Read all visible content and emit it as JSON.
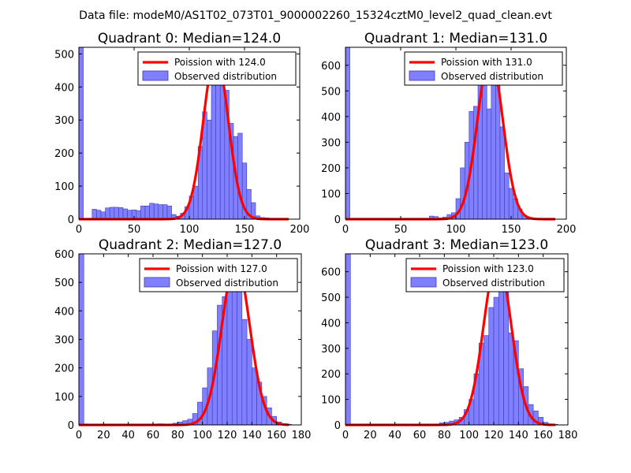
{
  "figure": {
    "suptitle": "Data file: modeM0/AS1T02_073T01_9000002260_15324cztM0_level2_quad_clean.evt"
  },
  "colors": {
    "bar_fill": "#7f7fff",
    "bar_edge": "#3c3cb4",
    "curve": "#ff0000"
  },
  "chart_data": [
    {
      "type": "bar",
      "title": "Quadrant 0: Median=124.0",
      "median": 124.0,
      "xlim": [
        0,
        200
      ],
      "ylim": [
        0,
        520
      ],
      "xticks": [
        0,
        50,
        100,
        150,
        200
      ],
      "yticks": [
        0,
        100,
        200,
        300,
        400,
        500
      ],
      "legend": [
        "Poission with 124.0",
        "Observed distribution"
      ],
      "legend_position": "top-right",
      "bin_width": 4,
      "bin_starts": [
        0,
        4,
        8,
        12,
        16,
        20,
        24,
        28,
        32,
        36,
        40,
        44,
        48,
        52,
        56,
        60,
        64,
        68,
        72,
        76,
        80,
        84,
        88,
        92,
        96,
        100,
        104,
        108,
        112,
        116,
        120,
        124,
        128,
        132,
        136,
        140,
        144,
        148,
        152,
        156,
        160,
        164,
        168,
        172,
        176,
        180,
        184,
        188,
        192,
        196
      ],
      "values": [
        520,
        0,
        0,
        30,
        27,
        22,
        34,
        36,
        36,
        35,
        31,
        27,
        28,
        26,
        40,
        40,
        48,
        46,
        44,
        44,
        40,
        14,
        9,
        18,
        38,
        70,
        100,
        220,
        325,
        300,
        460,
        500,
        440,
        390,
        290,
        250,
        260,
        170,
        90,
        50,
        10,
        5,
        4,
        3,
        2,
        0,
        0,
        0,
        0,
        0
      ],
      "fit_center": 124.0,
      "fit_peak": 500
    },
    {
      "type": "bar",
      "title": "Quadrant 1: Median=131.0",
      "median": 131.0,
      "xlim": [
        0,
        200
      ],
      "ylim": [
        0,
        670
      ],
      "xticks": [
        0,
        50,
        100,
        150,
        200
      ],
      "yticks": [
        0,
        100,
        200,
        300,
        400,
        500,
        600
      ],
      "legend": [
        "Poission with 131.0",
        "Observed distribution"
      ],
      "legend_position": "top-right",
      "bin_width": 4,
      "bin_starts": [
        0,
        4,
        8,
        12,
        16,
        20,
        24,
        28,
        32,
        36,
        40,
        44,
        48,
        52,
        56,
        60,
        64,
        68,
        72,
        76,
        80,
        84,
        88,
        92,
        96,
        100,
        104,
        108,
        112,
        116,
        120,
        124,
        128,
        132,
        136,
        140,
        144,
        148,
        152,
        156,
        160,
        164,
        168,
        172,
        176,
        180,
        184,
        188,
        192,
        196
      ],
      "values": [
        670,
        0,
        0,
        0,
        0,
        0,
        0,
        0,
        0,
        0,
        0,
        0,
        0,
        0,
        0,
        0,
        0,
        0,
        0,
        12,
        10,
        5,
        8,
        18,
        25,
        80,
        200,
        300,
        420,
        440,
        570,
        580,
        430,
        600,
        520,
        360,
        180,
        120,
        80,
        40,
        15,
        8,
        4,
        2,
        0,
        0,
        0,
        0,
        0,
        0
      ],
      "fit_center": 131.0,
      "fit_peak": 640
    },
    {
      "type": "bar",
      "title": "Quadrant 2: Median=127.0",
      "median": 127.0,
      "xlim": [
        0,
        180
      ],
      "ylim": [
        0,
        600
      ],
      "xticks": [
        0,
        20,
        40,
        60,
        80,
        100,
        120,
        140,
        160,
        180
      ],
      "yticks": [
        0,
        100,
        200,
        300,
        400,
        500,
        600
      ],
      "legend": [
        "Poission with 127.0",
        "Observed distribution"
      ],
      "legend_position": "top-right",
      "bin_width": 4,
      "bin_starts": [
        0,
        4,
        8,
        12,
        16,
        20,
        24,
        28,
        32,
        36,
        40,
        44,
        48,
        52,
        56,
        60,
        64,
        68,
        72,
        76,
        80,
        84,
        88,
        92,
        96,
        100,
        104,
        108,
        112,
        116,
        120,
        124,
        128,
        132,
        136,
        140,
        144,
        148,
        152,
        156,
        160,
        164,
        168,
        172,
        176
      ],
      "values": [
        600,
        0,
        0,
        0,
        0,
        0,
        0,
        0,
        0,
        0,
        0,
        0,
        0,
        0,
        0,
        0,
        4,
        2,
        3,
        6,
        10,
        15,
        20,
        40,
        80,
        130,
        200,
        330,
        420,
        450,
        480,
        550,
        480,
        370,
        300,
        200,
        150,
        100,
        60,
        30,
        10,
        5,
        2,
        0,
        0
      ],
      "fit_center": 127.0,
      "fit_peak": 575
    },
    {
      "type": "bar",
      "title": "Quadrant 3: Median=123.0",
      "median": 123.0,
      "xlim": [
        0,
        180
      ],
      "ylim": [
        0,
        670
      ],
      "xticks": [
        0,
        20,
        40,
        60,
        80,
        100,
        120,
        140,
        160,
        180
      ],
      "yticks": [
        0,
        100,
        200,
        300,
        400,
        500,
        600
      ],
      "legend": [
        "Poission with 123.0",
        "Observed distribution"
      ],
      "legend_position": "top-right",
      "bin_width": 4,
      "bin_starts": [
        0,
        4,
        8,
        12,
        16,
        20,
        24,
        28,
        32,
        36,
        40,
        44,
        48,
        52,
        56,
        60,
        64,
        68,
        72,
        76,
        80,
        84,
        88,
        92,
        96,
        100,
        104,
        108,
        112,
        116,
        120,
        124,
        128,
        132,
        136,
        140,
        144,
        148,
        152,
        156,
        160,
        164,
        168,
        172,
        176
      ],
      "values": [
        670,
        0,
        0,
        0,
        0,
        0,
        0,
        0,
        0,
        0,
        0,
        0,
        0,
        0,
        0,
        0,
        0,
        0,
        2,
        8,
        10,
        15,
        20,
        30,
        60,
        100,
        200,
        320,
        350,
        460,
        500,
        650,
        580,
        360,
        330,
        220,
        150,
        80,
        55,
        30,
        10,
        4,
        2,
        0,
        0
      ],
      "fit_center": 123.0,
      "fit_peak": 650
    }
  ]
}
